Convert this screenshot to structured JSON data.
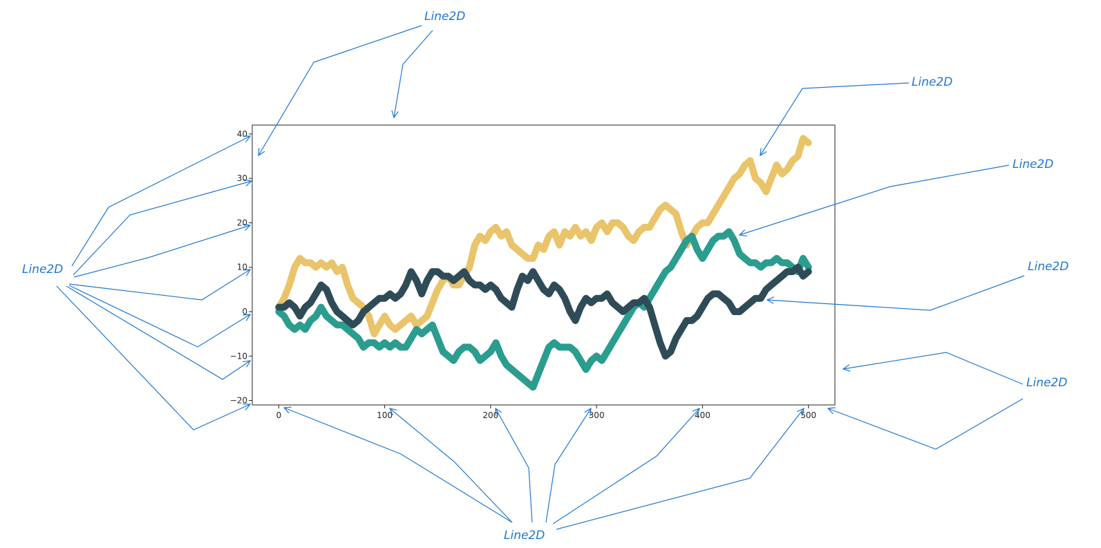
{
  "chart_data": {
    "type": "line",
    "xlim": [
      -25,
      525
    ],
    "ylim": [
      -21,
      42
    ],
    "x_ticks": [
      0,
      100,
      200,
      300,
      400,
      500
    ],
    "y_ticks": [
      -20,
      -10,
      0,
      10,
      20,
      30,
      40
    ],
    "x_tick_labels": [
      "0",
      "100",
      "200",
      "300",
      "400",
      "500"
    ],
    "y_tick_labels": [
      "−20",
      "−10",
      "0",
      "10",
      "20",
      "30",
      "40"
    ],
    "grid": false,
    "series": [
      {
        "color": "#e9c46a",
        "points": [
          [
            0,
            1
          ],
          [
            5,
            3
          ],
          [
            10,
            6
          ],
          [
            15,
            10
          ],
          [
            20,
            12
          ],
          [
            25,
            11
          ],
          [
            30,
            11
          ],
          [
            35,
            10
          ],
          [
            40,
            11
          ],
          [
            45,
            10
          ],
          [
            50,
            11
          ],
          [
            55,
            9
          ],
          [
            60,
            10
          ],
          [
            65,
            6
          ],
          [
            70,
            3
          ],
          [
            75,
            2
          ],
          [
            80,
            1
          ],
          [
            85,
            -1
          ],
          [
            90,
            -5
          ],
          [
            95,
            -3
          ],
          [
            100,
            -1
          ],
          [
            105,
            -3
          ],
          [
            110,
            -4
          ],
          [
            115,
            -3
          ],
          [
            120,
            -2
          ],
          [
            125,
            -1
          ],
          [
            130,
            -3
          ],
          [
            135,
            -2
          ],
          [
            140,
            -1
          ],
          [
            145,
            2
          ],
          [
            150,
            5
          ],
          [
            155,
            7
          ],
          [
            160,
            8
          ],
          [
            165,
            6
          ],
          [
            170,
            6
          ],
          [
            175,
            8
          ],
          [
            180,
            10
          ],
          [
            185,
            15
          ],
          [
            190,
            17
          ],
          [
            195,
            16
          ],
          [
            200,
            18
          ],
          [
            205,
            19
          ],
          [
            210,
            17
          ],
          [
            215,
            18
          ],
          [
            220,
            15
          ],
          [
            225,
            14
          ],
          [
            230,
            13
          ],
          [
            235,
            12
          ],
          [
            240,
            12
          ],
          [
            245,
            15
          ],
          [
            250,
            14
          ],
          [
            255,
            17
          ],
          [
            260,
            18
          ],
          [
            265,
            15
          ],
          [
            270,
            18
          ],
          [
            275,
            17
          ],
          [
            280,
            19
          ],
          [
            285,
            17
          ],
          [
            290,
            18
          ],
          [
            295,
            16
          ],
          [
            300,
            19
          ],
          [
            305,
            20
          ],
          [
            310,
            18
          ],
          [
            315,
            20
          ],
          [
            320,
            20
          ],
          [
            325,
            19
          ],
          [
            330,
            17
          ],
          [
            335,
            16
          ],
          [
            340,
            18
          ],
          [
            345,
            19
          ],
          [
            350,
            19
          ],
          [
            355,
            21
          ],
          [
            360,
            23
          ],
          [
            365,
            24
          ],
          [
            370,
            23
          ],
          [
            375,
            22
          ],
          [
            380,
            18
          ],
          [
            385,
            15
          ],
          [
            390,
            17
          ],
          [
            395,
            19
          ],
          [
            400,
            20
          ],
          [
            405,
            20
          ],
          [
            410,
            22
          ],
          [
            415,
            24
          ],
          [
            420,
            26
          ],
          [
            425,
            28
          ],
          [
            430,
            30
          ],
          [
            435,
            31
          ],
          [
            440,
            33
          ],
          [
            445,
            34
          ],
          [
            450,
            30
          ],
          [
            455,
            29
          ],
          [
            460,
            27
          ],
          [
            465,
            30
          ],
          [
            470,
            33
          ],
          [
            475,
            31
          ],
          [
            480,
            32
          ],
          [
            485,
            34
          ],
          [
            490,
            35
          ],
          [
            495,
            39
          ],
          [
            500,
            38
          ]
        ]
      },
      {
        "color": "#2a9d8f",
        "points": [
          [
            0,
            0
          ],
          [
            5,
            -1
          ],
          [
            10,
            -3
          ],
          [
            15,
            -4
          ],
          [
            20,
            -3
          ],
          [
            25,
            -4
          ],
          [
            30,
            -2
          ],
          [
            35,
            -1
          ],
          [
            40,
            1
          ],
          [
            45,
            -1
          ],
          [
            50,
            -2
          ],
          [
            55,
            -3
          ],
          [
            60,
            -3
          ],
          [
            65,
            -4
          ],
          [
            70,
            -5
          ],
          [
            75,
            -6
          ],
          [
            80,
            -8
          ],
          [
            85,
            -7
          ],
          [
            90,
            -7
          ],
          [
            95,
            -8
          ],
          [
            100,
            -7
          ],
          [
            105,
            -8
          ],
          [
            110,
            -7
          ],
          [
            115,
            -8
          ],
          [
            120,
            -8
          ],
          [
            125,
            -6
          ],
          [
            130,
            -4
          ],
          [
            135,
            -5
          ],
          [
            140,
            -4
          ],
          [
            145,
            -3
          ],
          [
            150,
            -6
          ],
          [
            155,
            -9
          ],
          [
            160,
            -10
          ],
          [
            165,
            -11
          ],
          [
            170,
            -9
          ],
          [
            175,
            -8
          ],
          [
            180,
            -8
          ],
          [
            185,
            -9
          ],
          [
            190,
            -11
          ],
          [
            195,
            -10
          ],
          [
            200,
            -9
          ],
          [
            205,
            -7
          ],
          [
            210,
            -10
          ],
          [
            215,
            -12
          ],
          [
            220,
            -13
          ],
          [
            225,
            -14
          ],
          [
            230,
            -15
          ],
          [
            235,
            -16
          ],
          [
            240,
            -17
          ],
          [
            245,
            -14
          ],
          [
            250,
            -11
          ],
          [
            255,
            -8
          ],
          [
            260,
            -7
          ],
          [
            265,
            -8
          ],
          [
            270,
            -8
          ],
          [
            275,
            -8
          ],
          [
            280,
            -9
          ],
          [
            285,
            -11
          ],
          [
            290,
            -13
          ],
          [
            295,
            -11
          ],
          [
            300,
            -10
          ],
          [
            305,
            -11
          ],
          [
            310,
            -9
          ],
          [
            315,
            -7
          ],
          [
            320,
            -5
          ],
          [
            325,
            -3
          ],
          [
            330,
            -1
          ],
          [
            335,
            1
          ],
          [
            340,
            2
          ],
          [
            345,
            1
          ],
          [
            350,
            3
          ],
          [
            355,
            5
          ],
          [
            360,
            7
          ],
          [
            365,
            9
          ],
          [
            370,
            10
          ],
          [
            375,
            12
          ],
          [
            380,
            14
          ],
          [
            385,
            16
          ],
          [
            390,
            17
          ],
          [
            395,
            14
          ],
          [
            400,
            12
          ],
          [
            405,
            14
          ],
          [
            410,
            16
          ],
          [
            415,
            17
          ],
          [
            420,
            17
          ],
          [
            425,
            18
          ],
          [
            430,
            16
          ],
          [
            435,
            13
          ],
          [
            440,
            12
          ],
          [
            445,
            11
          ],
          [
            450,
            11
          ],
          [
            455,
            10
          ],
          [
            460,
            11
          ],
          [
            465,
            11
          ],
          [
            470,
            12
          ],
          [
            475,
            11
          ],
          [
            480,
            11
          ],
          [
            485,
            10
          ],
          [
            490,
            9
          ],
          [
            495,
            12
          ],
          [
            500,
            10
          ]
        ]
      },
      {
        "color": "#2f4b57",
        "points": [
          [
            0,
            1
          ],
          [
            5,
            1
          ],
          [
            10,
            2
          ],
          [
            15,
            1
          ],
          [
            20,
            -1
          ],
          [
            25,
            1
          ],
          [
            30,
            2
          ],
          [
            35,
            4
          ],
          [
            40,
            6
          ],
          [
            45,
            5
          ],
          [
            50,
            2
          ],
          [
            55,
            0
          ],
          [
            60,
            -1
          ],
          [
            65,
            -2
          ],
          [
            70,
            -3
          ],
          [
            75,
            -2
          ],
          [
            80,
            0
          ],
          [
            85,
            1
          ],
          [
            90,
            2
          ],
          [
            95,
            3
          ],
          [
            100,
            3
          ],
          [
            105,
            4
          ],
          [
            110,
            3
          ],
          [
            115,
            4
          ],
          [
            120,
            6
          ],
          [
            125,
            9
          ],
          [
            130,
            7
          ],
          [
            135,
            4
          ],
          [
            140,
            7
          ],
          [
            145,
            9
          ],
          [
            150,
            9
          ],
          [
            155,
            8
          ],
          [
            160,
            8
          ],
          [
            165,
            7
          ],
          [
            170,
            8
          ],
          [
            175,
            9
          ],
          [
            180,
            7
          ],
          [
            185,
            6
          ],
          [
            190,
            6
          ],
          [
            195,
            5
          ],
          [
            200,
            6
          ],
          [
            205,
            5
          ],
          [
            210,
            3
          ],
          [
            215,
            2
          ],
          [
            220,
            1
          ],
          [
            225,
            5
          ],
          [
            230,
            8
          ],
          [
            235,
            7
          ],
          [
            240,
            9
          ],
          [
            245,
            7
          ],
          [
            250,
            5
          ],
          [
            255,
            4
          ],
          [
            260,
            6
          ],
          [
            265,
            5
          ],
          [
            270,
            3
          ],
          [
            275,
            0
          ],
          [
            280,
            -2
          ],
          [
            285,
            1
          ],
          [
            290,
            3
          ],
          [
            295,
            2
          ],
          [
            300,
            3
          ],
          [
            305,
            3
          ],
          [
            310,
            4
          ],
          [
            315,
            2
          ],
          [
            320,
            1
          ],
          [
            325,
            0
          ],
          [
            330,
            1
          ],
          [
            335,
            2
          ],
          [
            340,
            2
          ],
          [
            345,
            3
          ],
          [
            350,
            1
          ],
          [
            355,
            -3
          ],
          [
            360,
            -7
          ],
          [
            365,
            -10
          ],
          [
            370,
            -9
          ],
          [
            375,
            -6
          ],
          [
            380,
            -4
          ],
          [
            385,
            -2
          ],
          [
            390,
            -2
          ],
          [
            395,
            -1
          ],
          [
            400,
            1
          ],
          [
            405,
            3
          ],
          [
            410,
            4
          ],
          [
            415,
            4
          ],
          [
            420,
            3
          ],
          [
            425,
            2
          ],
          [
            430,
            0
          ],
          [
            435,
            0
          ],
          [
            440,
            1
          ],
          [
            445,
            2
          ],
          [
            450,
            3
          ],
          [
            455,
            3
          ],
          [
            460,
            5
          ],
          [
            465,
            6
          ],
          [
            470,
            7
          ],
          [
            475,
            8
          ],
          [
            480,
            9
          ],
          [
            485,
            9
          ],
          [
            490,
            10
          ],
          [
            495,
            8
          ],
          [
            500,
            9
          ]
        ]
      }
    ]
  },
  "annotations": [
    {
      "label": "Line2D"
    },
    {
      "label": "Line2D"
    },
    {
      "label": "Line2D"
    },
    {
      "label": "Line2D"
    },
    {
      "label": "Line2D"
    },
    {
      "label": "Line2D"
    },
    {
      "label": "Line2D"
    }
  ]
}
